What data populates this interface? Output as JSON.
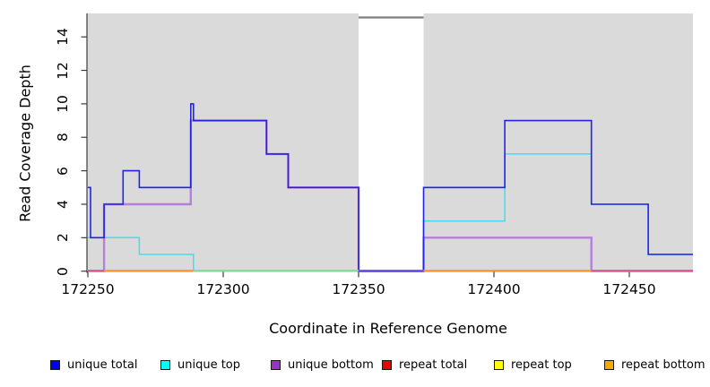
{
  "chart_data": {
    "type": "line",
    "subtype": "step-coverage-plot",
    "title": "",
    "xlabel": "Coordinate in Reference Genome",
    "ylabel": "Read Coverage Depth",
    "x_ticks": [
      "172250",
      "172300",
      "172350",
      "172400",
      "172450"
    ],
    "x_tick_values": [
      172250,
      172300,
      172350,
      172400,
      172450
    ],
    "y_ticks": [
      "0",
      "2",
      "4",
      "6",
      "8",
      "10",
      "12",
      "14"
    ],
    "y_tick_values": [
      0,
      2,
      4,
      6,
      8,
      10,
      12,
      14
    ],
    "xlim": [
      172249.7,
      172473.5
    ],
    "ylim": [
      0,
      15.4
    ],
    "grid": false,
    "legend_position": "bottom",
    "background": {
      "shaded_color": "#dadada",
      "shaded_regions": [
        [
          172249.7,
          172350
        ],
        [
          172374,
          172473.5
        ]
      ],
      "gap_region": [
        172350,
        172374
      ],
      "gap_marker_color": "#7d7d7d"
    },
    "series": [
      {
        "name": "unique total",
        "line_color": "#2323e6",
        "legend_color": "#0000f0",
        "points": [
          [
            172250,
            5
          ],
          [
            172251,
            2
          ],
          [
            172256,
            4
          ],
          [
            172263,
            6
          ],
          [
            172269,
            5
          ],
          [
            172288,
            10
          ],
          [
            172289,
            9
          ],
          [
            172316,
            7
          ],
          [
            172324,
            5
          ],
          [
            172350,
            0
          ],
          [
            172374,
            5
          ],
          [
            172404,
            9
          ],
          [
            172436,
            4
          ],
          [
            172457,
            1
          ],
          [
            172473.5,
            1
          ]
        ]
      },
      {
        "name": "unique top",
        "line_color": "#44dcee",
        "legend_color": "#00ffff",
        "points": [
          [
            172250,
            2
          ],
          [
            172269,
            1
          ],
          [
            172289,
            0
          ],
          [
            172374,
            3
          ],
          [
            172404,
            7
          ],
          [
            172436,
            4
          ],
          [
            172457,
            1
          ],
          [
            172473.5,
            1
          ]
        ]
      },
      {
        "name": "unique bottom",
        "line_color": "#b77fdd",
        "legend_color": "#9932cc",
        "points": [
          [
            172250,
            0
          ],
          [
            172256,
            4
          ],
          [
            172288,
            9
          ],
          [
            172316,
            7
          ],
          [
            172324,
            5
          ],
          [
            172350,
            0
          ],
          [
            172374,
            2
          ],
          [
            172436,
            0
          ],
          [
            172473.5,
            0
          ]
        ]
      },
      {
        "name": "repeat total",
        "line_color": "#e0557f",
        "legend_color": "#ee0000",
        "points": [
          [
            172250,
            0
          ],
          [
            172473.5,
            0
          ]
        ]
      },
      {
        "name": "repeat top",
        "line_color": "#f2ef4c",
        "legend_color": "#ffff00",
        "points": [
          [
            172250,
            0
          ],
          [
            172473.5,
            0
          ]
        ]
      },
      {
        "name": "repeat bottom",
        "line_color": "#ff9d26",
        "legend_color": "#ffa500",
        "points": [
          [
            172250,
            0
          ],
          [
            172473.5,
            0
          ]
        ]
      }
    ],
    "baseline_segments": [
      {
        "from": 172250,
        "to": 172256,
        "color": "#e0557f"
      },
      {
        "from": 172256,
        "to": 172289,
        "color": "#ff9d26"
      },
      {
        "from": 172289,
        "to": 172350,
        "color": "#8fd98f"
      },
      {
        "from": 172350,
        "to": 172374,
        "color": "#6a52e6"
      },
      {
        "from": 172374,
        "to": 172436,
        "color": "#ff9d26"
      },
      {
        "from": 172436,
        "to": 172473.5,
        "color": "#e0557f"
      }
    ]
  }
}
